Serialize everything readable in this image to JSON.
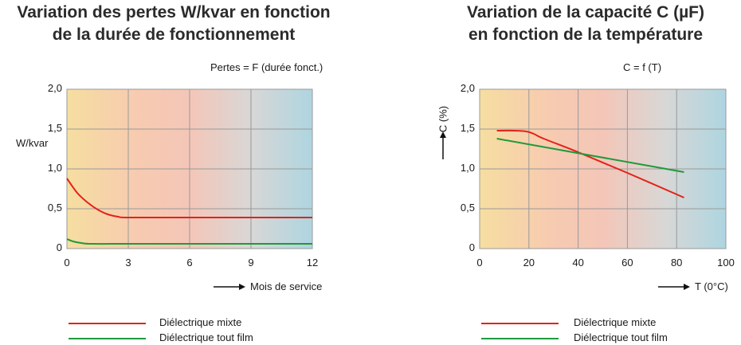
{
  "chart_data": [
    {
      "type": "line",
      "title": [
        "Variation des pertes W/kvar en fonction",
        "de la durée de fonctionnement"
      ],
      "subtitle": "Pertes = F (durée fonct.)",
      "ylabel": "W/kvar",
      "xlabel": "Mois de service",
      "xlim": [
        0,
        12
      ],
      "ylim": [
        0,
        2
      ],
      "xticks": [
        "0",
        "3",
        "6",
        "9",
        "12"
      ],
      "yticks": [
        "0",
        "0,5",
        "1,0",
        "1,5",
        "2,0"
      ],
      "series": [
        {
          "name": "Diélectrique mixte",
          "color": "#e2231a",
          "x": [
            0,
            0.5,
            1,
            1.5,
            2,
            2.5,
            3,
            6,
            9,
            12
          ],
          "y": [
            0.88,
            0.7,
            0.58,
            0.49,
            0.43,
            0.4,
            0.39,
            0.39,
            0.39,
            0.39
          ]
        },
        {
          "name": "Diélectrique tout film",
          "color": "#1f9a3a",
          "x": [
            0,
            0.3,
            0.7,
            1.2,
            3,
            6,
            9,
            12
          ],
          "y": [
            0.12,
            0.09,
            0.07,
            0.06,
            0.06,
            0.06,
            0.06,
            0.06
          ]
        }
      ]
    },
    {
      "type": "line",
      "title": [
        "Variation de la capacité C (µF)",
        "en fonction de la température"
      ],
      "subtitle": "C = f (T)",
      "ylabel": "C (%)",
      "xlabel": "T (0°C)",
      "xlim": [
        0,
        100
      ],
      "ylim": [
        0,
        2
      ],
      "xticks": [
        "0",
        "20",
        "40",
        "60",
        "80",
        "100"
      ],
      "yticks": [
        "0",
        "0,5",
        "1,0",
        "1,5",
        "2,0"
      ],
      "series": [
        {
          "name": "Diélectrique mixte",
          "color": "#e2231a",
          "x": [
            7,
            14,
            19,
            22,
            26,
            40,
            60,
            83
          ],
          "y": [
            1.48,
            1.48,
            1.47,
            1.44,
            1.38,
            1.21,
            0.95,
            0.64
          ]
        },
        {
          "name": "Diélectrique tout film",
          "color": "#1f9a3a",
          "x": [
            7,
            83
          ],
          "y": [
            1.38,
            0.96
          ]
        }
      ]
    }
  ],
  "colors": {
    "grid": "#9a9a9a",
    "bg_gradient": [
      "#f6dea0",
      "#f7cbb0",
      "#f4c6b8",
      "#d8d7d6",
      "#aed5e0"
    ]
  }
}
